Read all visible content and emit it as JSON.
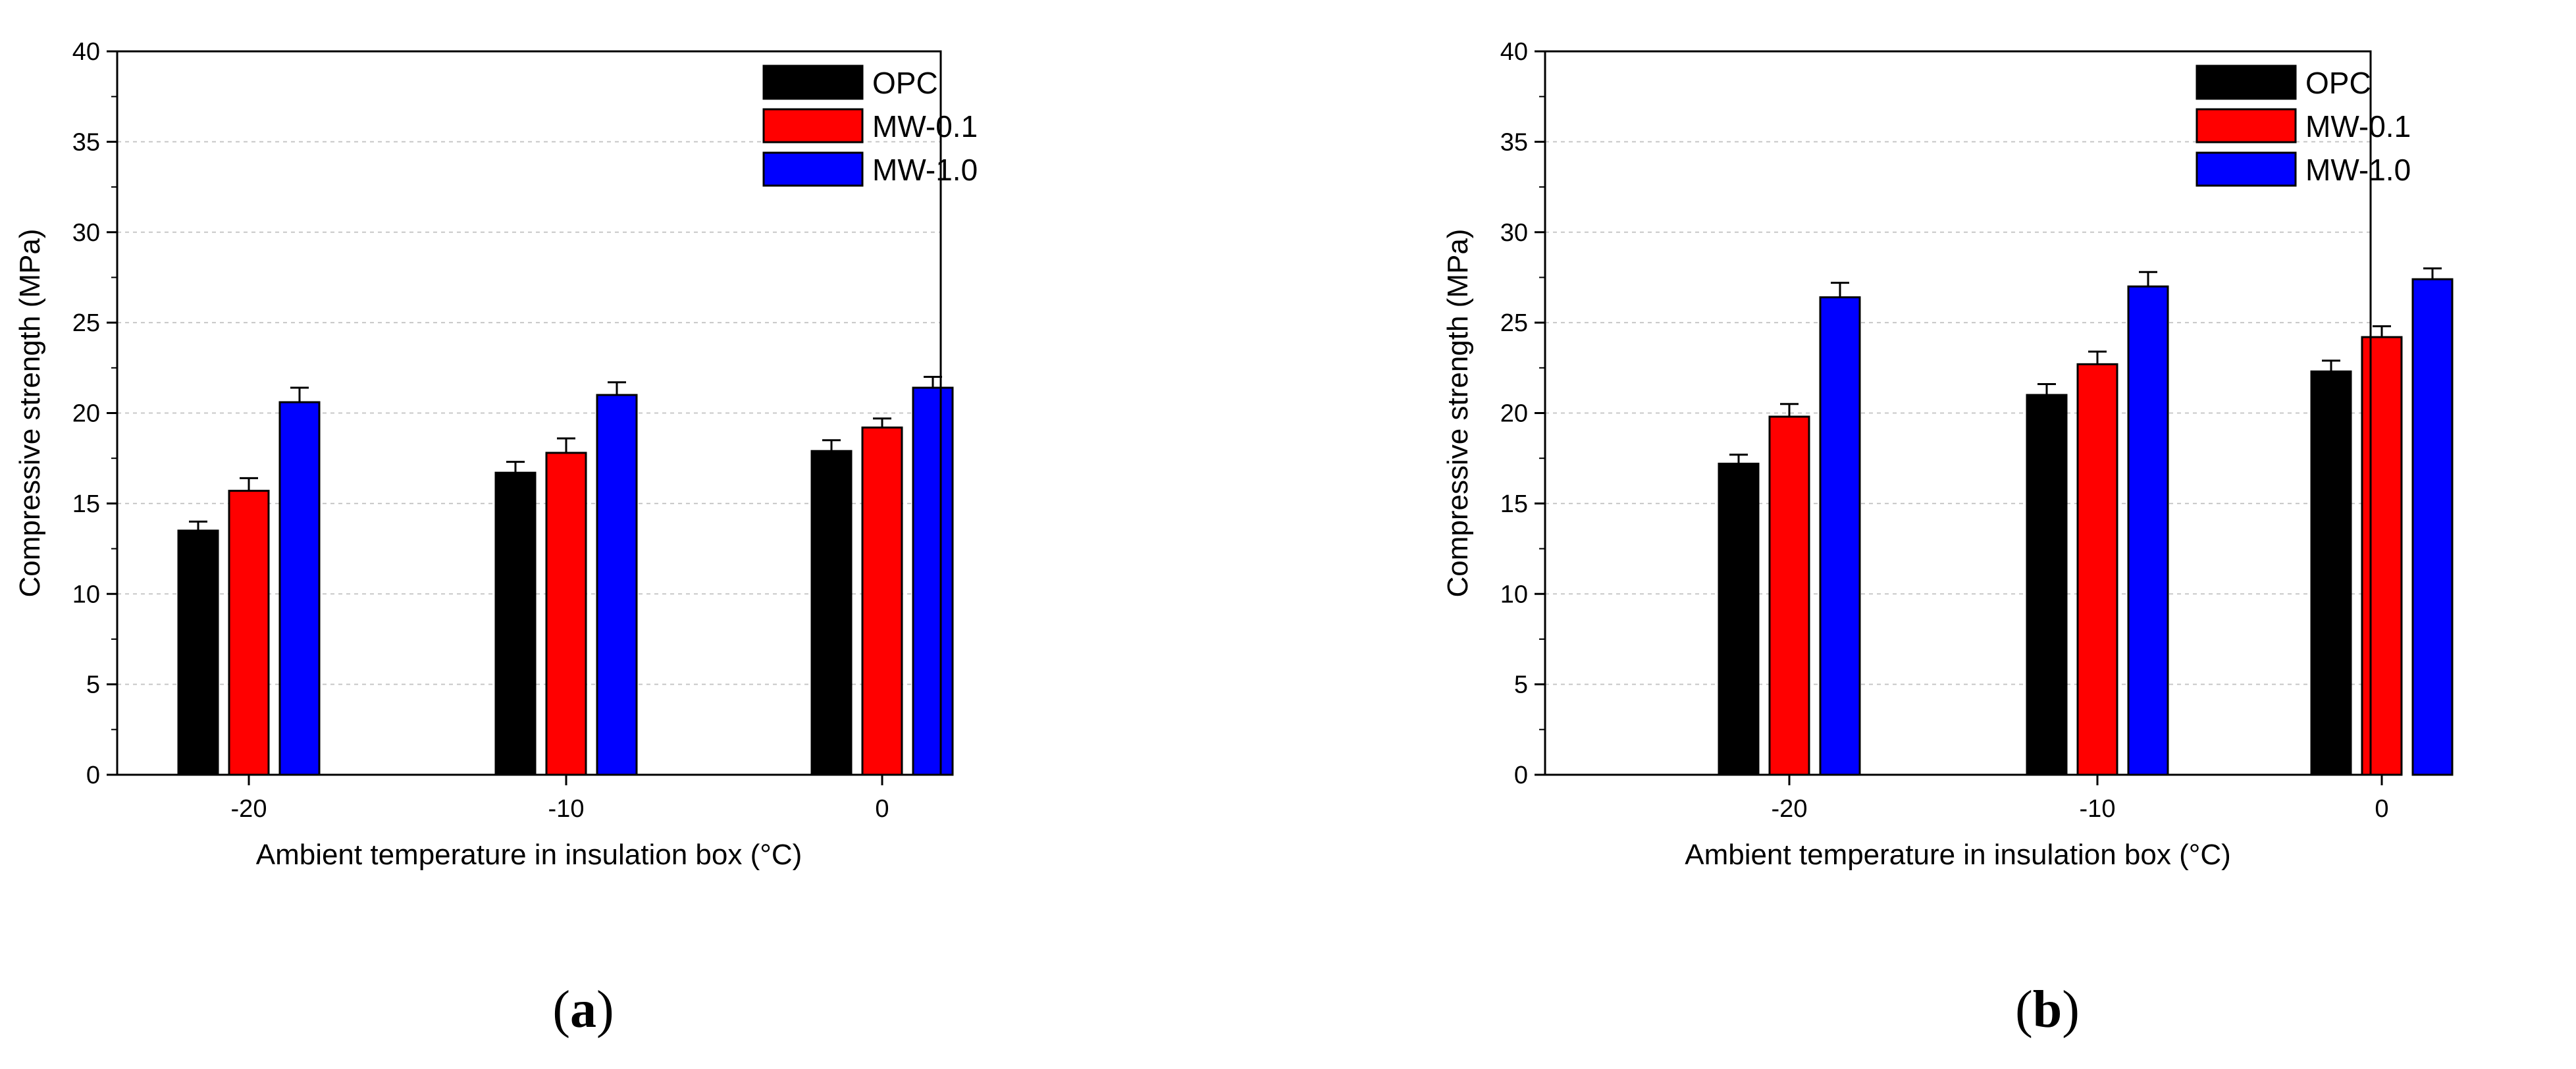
{
  "colors": {
    "OPC": "#000000",
    "MW-0.1": "#ff0000",
    "MW-1.0": "#0000ff",
    "grid": "#c8c8c8",
    "axis": "#000000"
  },
  "chart_data": [
    {
      "type": "bar",
      "panel_label": "(a)",
      "panel_letter": "a",
      "paren_open": "(",
      "paren_close": ")",
      "title": "",
      "xlabel": "Ambient temperature in insulation box (°C)",
      "ylabel": "Compressive strength (MPa)",
      "ylim": [
        0,
        40
      ],
      "yticks": [
        0,
        5,
        10,
        15,
        20,
        25,
        30,
        35,
        40
      ],
      "categories": [
        "-20",
        "-10",
        "0"
      ],
      "grid": true,
      "legend_position": "top-right",
      "series": [
        {
          "name": "OPC",
          "values": [
            13.5,
            16.7,
            17.9
          ],
          "errors": [
            0.5,
            0.6,
            0.6
          ]
        },
        {
          "name": "MW-0.1",
          "values": [
            15.7,
            17.8,
            19.2
          ],
          "errors": [
            0.7,
            0.8,
            0.5
          ]
        },
        {
          "name": "MW-1.0",
          "values": [
            20.6,
            21.0,
            21.4
          ],
          "errors": [
            0.8,
            0.7,
            0.6
          ]
        }
      ]
    },
    {
      "type": "bar",
      "panel_label": "(b)",
      "panel_letter": "b",
      "paren_open": "(",
      "paren_close": ")",
      "title": "",
      "xlabel": "Ambient temperature in insulation box (°C)",
      "ylabel": "Compressive strength (MPa)",
      "ylim": [
        0,
        40
      ],
      "yticks": [
        0,
        5,
        10,
        15,
        20,
        25,
        30,
        35,
        40
      ],
      "categories": [
        "-20",
        "-10",
        "0"
      ],
      "grid": true,
      "legend_position": "top-right",
      "series": [
        {
          "name": "OPC",
          "values": [
            17.2,
            21.0,
            22.3
          ],
          "errors": [
            0.5,
            0.6,
            0.6
          ]
        },
        {
          "name": "MW-0.1",
          "values": [
            19.8,
            22.7,
            24.2
          ],
          "errors": [
            0.7,
            0.7,
            0.6
          ]
        },
        {
          "name": "MW-1.0",
          "values": [
            26.4,
            27.0,
            27.4
          ],
          "errors": [
            0.8,
            0.8,
            0.6
          ]
        }
      ]
    }
  ]
}
